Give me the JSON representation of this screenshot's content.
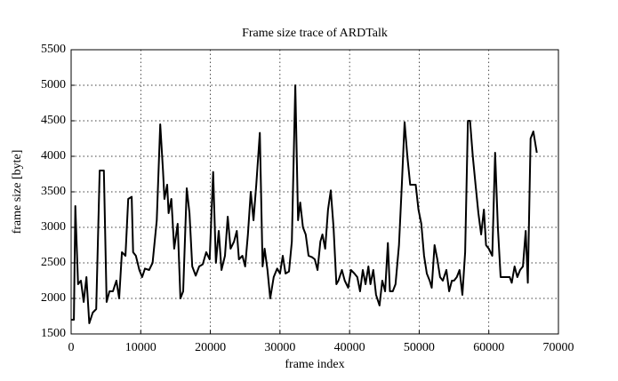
{
  "chart_data": {
    "type": "line",
    "title": "Frame size trace of ARDTalk",
    "x_label": "frame index",
    "y_label": "frame size [byte]",
    "xlim": [
      0,
      70000
    ],
    "xticks": [
      0,
      10000,
      20000,
      30000,
      40000,
      50000,
      60000,
      70000
    ],
    "ylim": [
      1500,
      5500
    ],
    "yticks": [
      1500,
      2000,
      2500,
      3000,
      3500,
      4000,
      4500,
      5000,
      5500
    ],
    "grid": true,
    "series": [
      {
        "color": "#000000",
        "x": [
          0,
          400,
          600,
          1000,
          1400,
          1800,
          2200,
          2600,
          3100,
          3600,
          4100,
          4700,
          5100,
          5500,
          6000,
          6500,
          6900,
          7300,
          7800,
          8200,
          8700,
          8900,
          9300,
          9800,
          10200,
          10600,
          11200,
          11700,
          12300,
          12800,
          13200,
          13400,
          13800,
          14000,
          14400,
          14800,
          15300,
          15700,
          16100,
          16600,
          17000,
          17400,
          17900,
          18400,
          18900,
          19400,
          19900,
          20400,
          20800,
          21200,
          21600,
          22100,
          22500,
          22900,
          23400,
          23800,
          24100,
          24600,
          25000,
          25400,
          25800,
          26200,
          26600,
          27100,
          27500,
          27800,
          28200,
          28600,
          29100,
          29600,
          30000,
          30400,
          30800,
          31300,
          31700,
          32200,
          32600,
          32900,
          33300,
          33700,
          34100,
          34600,
          35000,
          35400,
          35800,
          36100,
          36500,
          36900,
          37300,
          37700,
          38100,
          38400,
          38900,
          39300,
          39800,
          40200,
          40700,
          41100,
          41500,
          41900,
          42300,
          42700,
          43000,
          43400,
          43800,
          44300,
          44700,
          45100,
          45500,
          45800,
          46200,
          46600,
          47100,
          47500,
          47900,
          48300,
          48700,
          49000,
          49500,
          49900,
          50300,
          50700,
          51100,
          51500,
          51800,
          52200,
          52600,
          53000,
          53400,
          53900,
          54300,
          54700,
          55000,
          55400,
          55800,
          56200,
          56600,
          57000,
          57300,
          57700,
          58100,
          58500,
          58900,
          59300,
          59600,
          60000,
          60500,
          60900,
          61300,
          61700,
          62200,
          62600,
          63000,
          63300,
          63700,
          64100,
          64500,
          64900,
          65300,
          65600,
          66000,
          66400,
          66900
        ],
        "values": [
          1700,
          1700,
          3300,
          2200,
          2250,
          1950,
          2300,
          1650,
          1800,
          1850,
          3800,
          3800,
          1950,
          2100,
          2100,
          2250,
          2000,
          2650,
          2600,
          3400,
          3430,
          2650,
          2600,
          2400,
          2300,
          2420,
          2400,
          2500,
          3100,
          4450,
          3800,
          3400,
          3600,
          3200,
          3400,
          2700,
          3050,
          2000,
          2100,
          3550,
          3200,
          2450,
          2320,
          2450,
          2480,
          2650,
          2550,
          3780,
          2500,
          2950,
          2400,
          2600,
          3150,
          2700,
          2800,
          2950,
          2550,
          2600,
          2450,
          2900,
          3500,
          3100,
          3600,
          4330,
          2450,
          2700,
          2400,
          2000,
          2300,
          2420,
          2350,
          2600,
          2350,
          2380,
          2800,
          5000,
          3100,
          3350,
          3000,
          2900,
          2600,
          2580,
          2550,
          2400,
          2800,
          2900,
          2700,
          3250,
          3520,
          3000,
          2200,
          2250,
          2400,
          2250,
          2150,
          2400,
          2350,
          2300,
          2100,
          2400,
          2200,
          2450,
          2200,
          2400,
          2050,
          1900,
          2250,
          2100,
          2780,
          2100,
          2100,
          2200,
          2750,
          3600,
          4480,
          4000,
          3600,
          3600,
          3600,
          3250,
          3050,
          2600,
          2350,
          2250,
          2150,
          2750,
          2550,
          2300,
          2250,
          2400,
          2100,
          2250,
          2250,
          2300,
          2400,
          2050,
          2650,
          4500,
          4500,
          4000,
          3600,
          3200,
          2900,
          3250,
          2750,
          2700,
          2600,
          4050,
          3000,
          2300,
          2300,
          2300,
          2300,
          2220,
          2450,
          2300,
          2400,
          2450,
          2950,
          2220,
          4250,
          4350,
          4050
        ]
      }
    ]
  }
}
